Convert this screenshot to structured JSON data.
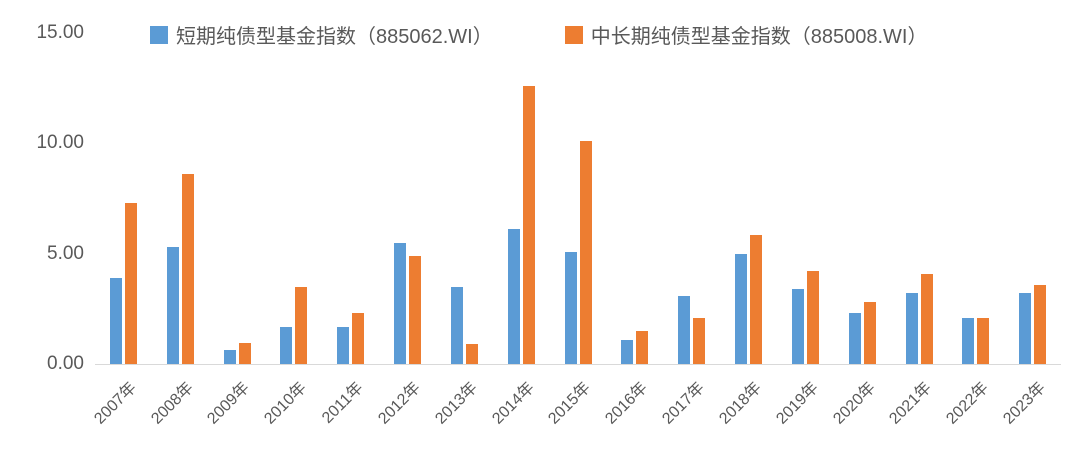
{
  "chart_data": {
    "type": "bar",
    "title": "",
    "xlabel": "",
    "ylabel": "",
    "ylim": [
      0,
      15
    ],
    "ytick_values": [
      15,
      10,
      5,
      0
    ],
    "ytick_labels": [
      "15.00",
      "10.00",
      "5.00",
      "0.00"
    ],
    "grid": false,
    "legend_position": "top",
    "categories": [
      "2007年",
      "2008年",
      "2009年",
      "2010年",
      "2011年",
      "2012年",
      "2013年",
      "2014年",
      "2015年",
      "2016年",
      "2017年",
      "2018年",
      "2019年",
      "2020年",
      "2021年",
      "2022年",
      "2023年"
    ],
    "series": [
      {
        "name": "短期纯债型基金指数（885062.WI）",
        "color": "#5B9BD5",
        "values": [
          3.9,
          5.3,
          0.65,
          1.7,
          1.7,
          5.5,
          3.5,
          6.1,
          5.1,
          1.1,
          3.1,
          5.0,
          3.4,
          2.3,
          3.2,
          2.1,
          3.2
        ]
      },
      {
        "name": "中长期纯债型基金指数（885008.WI）",
        "color": "#ED7D31",
        "values": [
          7.3,
          8.6,
          0.95,
          3.5,
          2.3,
          4.9,
          0.9,
          12.6,
          10.1,
          1.5,
          2.1,
          5.85,
          4.2,
          2.8,
          4.1,
          2.1,
          3.6
        ]
      }
    ],
    "axis_line_color": "#d9d9d9",
    "text_color": "#595959"
  }
}
